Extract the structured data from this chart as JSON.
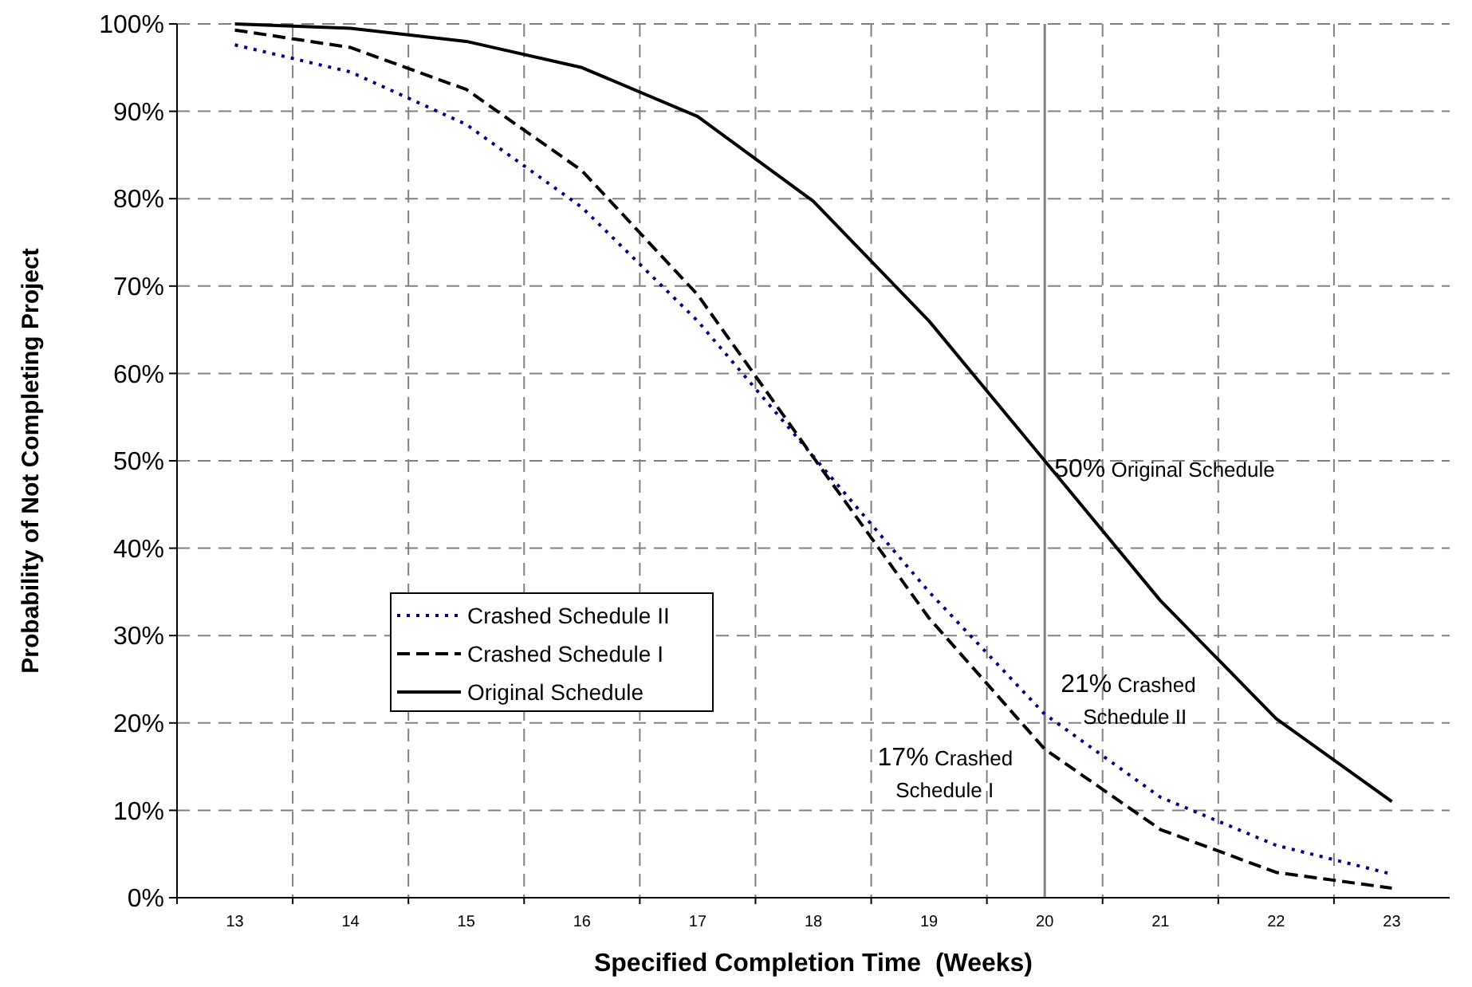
{
  "chart_data": {
    "type": "line",
    "xlabel": "Specified Completion Time  (Weeks)",
    "ylabel": "Probability of Not Completing Project",
    "categories": [
      "13",
      "14",
      "15",
      "16",
      "17",
      "18",
      "19",
      "20",
      "21",
      "22",
      "23"
    ],
    "series": [
      {
        "name": "Crashed Schedule II",
        "color": "#000080",
        "line_style": "dotted",
        "values": [
          97.6,
          94.5,
          88.5,
          79,
          66,
          50.5,
          35,
          21,
          11.5,
          6,
          2.7
        ]
      },
      {
        "name": "Crashed Schedule I",
        "color": "#000000",
        "line_style": "dashed",
        "values": [
          99.3,
          97.3,
          92.5,
          83.2,
          69,
          50.4,
          32,
          17,
          7.8,
          2.9,
          1.1
        ]
      },
      {
        "name": "Original Schedule",
        "color": "#000000",
        "line_style": "solid",
        "values": [
          100,
          99.5,
          98,
          95,
          89.4,
          79.7,
          66,
          50,
          34,
          20.5,
          11
        ]
      }
    ],
    "ylim": [
      0,
      100
    ],
    "yticks": [
      {
        "value": 0,
        "label": "0%"
      },
      {
        "value": 10,
        "label": "10%"
      },
      {
        "value": 20,
        "label": "20%"
      },
      {
        "value": 30,
        "label": "30%"
      },
      {
        "value": 40,
        "label": "40%"
      },
      {
        "value": 50,
        "label": "50%"
      },
      {
        "value": 60,
        "label": "60%"
      },
      {
        "value": 70,
        "label": "70%"
      },
      {
        "value": 80,
        "label": "80%"
      },
      {
        "value": 90,
        "label": "90%"
      },
      {
        "value": 100,
        "label": "100%"
      }
    ],
    "grid": true,
    "legend": "left",
    "marker": "none",
    "ref_lines": [
      {
        "axis": "x",
        "value": "20",
        "color": "#808080"
      }
    ],
    "annotations": [
      {
        "text": "50% Original Schedule",
        "x": "20",
        "y": 50
      },
      {
        "text": "21% Crashed Schedule II",
        "x": "20",
        "y": 21
      },
      {
        "text": "17% Crashed Schedule I",
        "x": "20",
        "y": 17
      }
    ]
  }
}
